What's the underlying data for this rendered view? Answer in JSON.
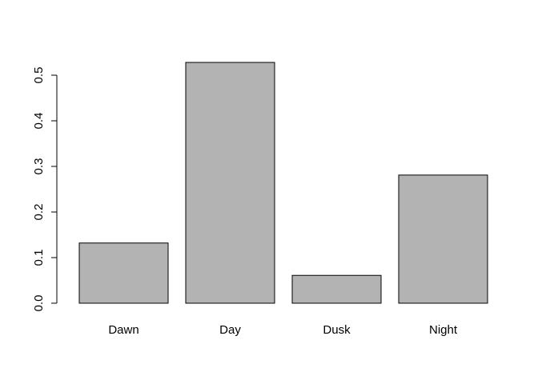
{
  "chart_data": {
    "type": "bar",
    "title": "",
    "xlabel": "",
    "ylabel": "",
    "categories": [
      "Dawn",
      "Day",
      "Dusk",
      "Night"
    ],
    "values": [
      0.132,
      0.528,
      0.061,
      0.281
    ],
    "ylim": [
      0,
      0.5
    ],
    "yticks": [
      0.0,
      0.1,
      0.2,
      0.3,
      0.4,
      0.5
    ],
    "ytick_labels": [
      "0.0",
      "0.1",
      "0.2",
      "0.3",
      "0.4",
      "0.5"
    ],
    "bar_color": "#b3b3b3",
    "edge_color": "#000000",
    "grid": false,
    "legend": "none"
  }
}
